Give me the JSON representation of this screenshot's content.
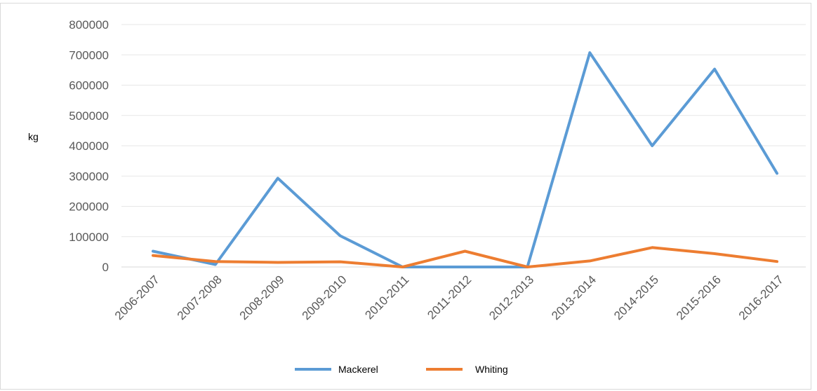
{
  "chart_data": {
    "type": "line",
    "title": "",
    "xlabel": "",
    "ylabel": "kg",
    "ylim": [
      0,
      800000
    ],
    "yticks": [
      "800000",
      "700000",
      "600000",
      "500000",
      "400000",
      "300000",
      "200000",
      "100000",
      "0"
    ],
    "ytick_values": [
      800000,
      700000,
      600000,
      500000,
      400000,
      300000,
      200000,
      100000,
      0
    ],
    "categories": [
      "2006-2007",
      "2007-2008",
      "2008-2009",
      "2009-2010",
      "2010-2011",
      "2011-2012",
      "2012-2013",
      "2013-2014",
      "2014-2015",
      "2015-2016",
      "2016-2017"
    ],
    "grid": true,
    "legend_position": "bottom",
    "series": [
      {
        "name": "Mackerel",
        "color": "#5b9bd5",
        "values": [
          52000,
          8000,
          293000,
          103000,
          0,
          0,
          0,
          707000,
          400000,
          653000,
          309000
        ]
      },
      {
        "name": "Whiting",
        "color": "#ed7d31",
        "values": [
          38000,
          18000,
          15000,
          17000,
          0,
          52000,
          0,
          20000,
          64000,
          44000,
          18000
        ]
      }
    ]
  }
}
